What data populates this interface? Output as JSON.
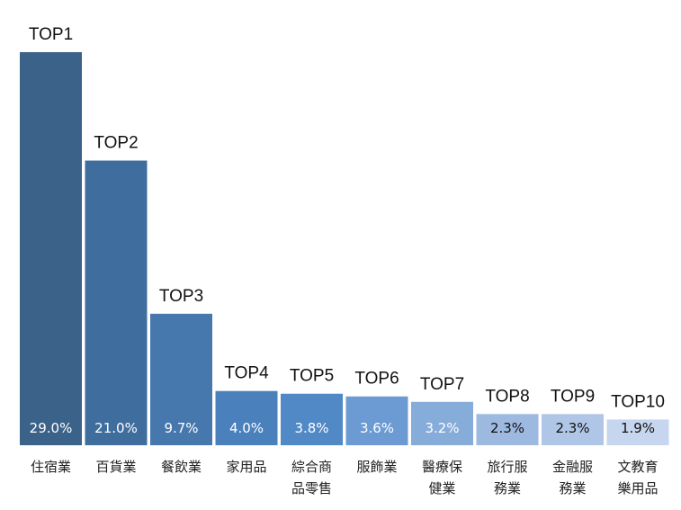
{
  "chart_data": {
    "type": "bar",
    "categories": [
      "住宿業",
      "百貨業",
      "餐飲業",
      "家用品",
      "綜合商品零售",
      "服飾業",
      "醫療保健業",
      "旅行服務業",
      "金融服務業",
      "文教育樂用品"
    ],
    "ranks": [
      "TOP1",
      "TOP2",
      "TOP3",
      "TOP4",
      "TOP5",
      "TOP6",
      "TOP7",
      "TOP8",
      "TOP9",
      "TOP10"
    ],
    "values": [
      29.0,
      21.0,
      9.7,
      4.0,
      3.8,
      3.6,
      3.2,
      2.3,
      2.3,
      1.9
    ],
    "value_labels": [
      "29.0%",
      "21.0%",
      "9.7%",
      "4.0%",
      "3.8%",
      "3.6%",
      "3.2%",
      "2.3%",
      "2.3%",
      "1.9%"
    ],
    "colors": [
      "#3b6288",
      "#3f6e9e",
      "#4677ad",
      "#4a80bb",
      "#5089c6",
      "#6b9bd2",
      "#86acd9",
      "#9db9e0",
      "#b0c6e6",
      "#c6d6ee"
    ]
  }
}
